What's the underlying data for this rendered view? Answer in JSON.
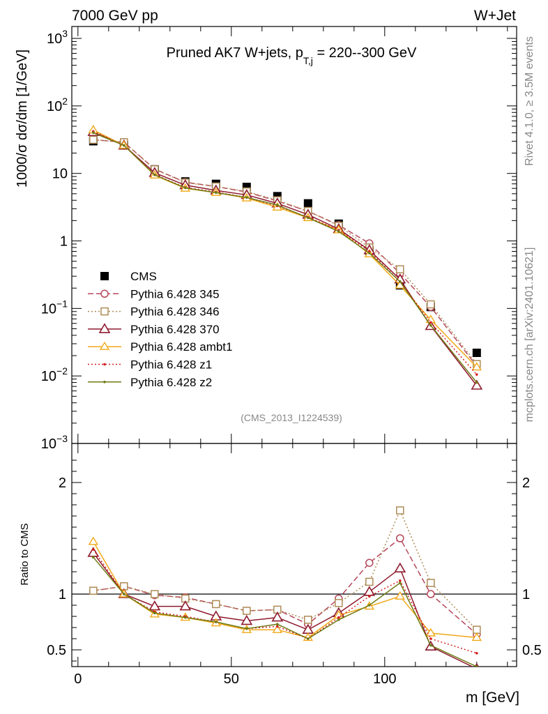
{
  "header": {
    "left": "7000 GeV pp",
    "right": "W+Jet"
  },
  "side": {
    "rivet": "Rivet 4.1.0, ≥ 3.5M events",
    "mcplots": "mcplots.cern.ch [arXiv:2401.10621]"
  },
  "chart_data": [
    {
      "type": "line",
      "panel": "main",
      "title": "Pruned AK7 W+jets, p_T,j = 220--300 GeV",
      "title_main": "Pruned AK7 W+jets, p",
      "title_sub": "T,j",
      "title_rest": " = 220--300 GeV",
      "ylabel": "1000/σ  dσ/dm [1/GeV]",
      "yscale": "log",
      "ylim": [
        0.001,
        1500
      ],
      "xlim": [
        -2,
        143
      ],
      "watermark": "(CMS_2013_I1224539)",
      "x": [
        5,
        15,
        25,
        35,
        45,
        55,
        65,
        75,
        85,
        95,
        105,
        115,
        130
      ],
      "series": [
        {
          "name": "CMS",
          "color": "#000000",
          "marker": "square",
          "dash": "",
          "values": [
            30,
            26,
            11.5,
            7.6,
            7.0,
            6.3,
            4.6,
            3.6,
            1.8,
            0.72,
            0.22,
            0.105,
            0.022
          ]
        },
        {
          "name": "Pythia 6.428 345",
          "color": "#b5475a",
          "marker": "circle",
          "dash": "8,4",
          "values": [
            31.5,
            29,
            11.6,
            7.4,
            6.4,
            5.3,
            3.9,
            2.75,
            1.72,
            0.92,
            0.33,
            0.105,
            0.014
          ]
        },
        {
          "name": "Pythia 6.428 346",
          "color": "#ad8b56",
          "marker": "osquare",
          "dash": "2,3",
          "values": [
            31.5,
            29,
            11.5,
            7.3,
            6.4,
            5.4,
            4.0,
            2.78,
            1.67,
            0.8,
            0.38,
            0.115,
            0.015
          ]
        },
        {
          "name": "Pythia 6.428 370",
          "color": "#8e1a2e",
          "marker": "triangle",
          "dash": "",
          "values": [
            41,
            26,
            10.2,
            6.7,
            5.6,
            4.8,
            3.6,
            2.45,
            1.5,
            0.73,
            0.27,
            0.055,
            0.0072
          ]
        },
        {
          "name": "Pythia 6.428 ambt1",
          "color": "#f0a818",
          "marker": "otriangle",
          "dash": "",
          "values": [
            44,
            26,
            9.4,
            6.0,
            5.2,
            4.3,
            3.15,
            2.2,
            1.45,
            0.64,
            0.22,
            0.068,
            0.0135
          ]
        },
        {
          "name": "Pythia 6.428 z1",
          "color": "#d42020",
          "marker": "dot",
          "dash": "2,3",
          "values": [
            42,
            26,
            9.6,
            6.2,
            5.3,
            4.4,
            3.3,
            2.25,
            1.45,
            0.7,
            0.25,
            0.062,
            0.0105
          ]
        },
        {
          "name": "Pythia 6.428 z2",
          "color": "#6f7a14",
          "marker": "dot",
          "dash": "",
          "values": [
            40,
            26,
            9.5,
            6.1,
            5.2,
            4.4,
            3.4,
            2.2,
            1.38,
            0.66,
            0.25,
            0.056,
            0.008
          ]
        }
      ],
      "yticks": [
        {
          "value": 0.001,
          "base": "10",
          "exp": "−3"
        },
        {
          "value": 0.01,
          "base": "10",
          "exp": "−2"
        },
        {
          "value": 0.1,
          "base": "10",
          "exp": "−1"
        },
        {
          "value": 1,
          "base": "1",
          "exp": ""
        },
        {
          "value": 10,
          "base": "10",
          "exp": ""
        },
        {
          "value": 100,
          "base": "10",
          "exp": "2"
        },
        {
          "value": 1000,
          "base": "10",
          "exp": "3"
        }
      ]
    },
    {
      "type": "line",
      "panel": "ratio",
      "ylabel": "Ratio to CMS",
      "xlabel": "m [GeV]",
      "ylim": [
        0.35,
        2.35
      ],
      "xlim": [
        -2,
        143
      ],
      "reference": 1,
      "x": [
        5,
        15,
        25,
        35,
        45,
        55,
        65,
        75,
        85,
        95,
        105,
        115,
        130
      ],
      "series": [
        {
          "name": "Pythia 6.428 345",
          "values": [
            1.03,
            1.07,
            0.99,
            0.97,
            0.91,
            0.85,
            0.86,
            0.73,
            0.96,
            1.28,
            1.5,
            1.0,
            0.64
          ]
        },
        {
          "name": "Pythia 6.428 346",
          "values": [
            1.03,
            1.07,
            1.0,
            0.96,
            0.91,
            0.85,
            0.86,
            0.77,
            0.92,
            1.11,
            1.75,
            1.1,
            0.68
          ]
        },
        {
          "name": "Pythia 6.428 370",
          "values": [
            1.37,
            1.0,
            0.89,
            0.89,
            0.8,
            0.76,
            0.79,
            0.68,
            0.83,
            1.02,
            1.23,
            0.53,
            0.33
          ]
        },
        {
          "name": "Pythia 6.428 ambt1",
          "values": [
            1.47,
            1.0,
            0.82,
            0.79,
            0.74,
            0.68,
            0.68,
            0.61,
            0.81,
            0.89,
            0.98,
            0.65,
            0.61
          ]
        },
        {
          "name": "Pythia 6.428 z1",
          "values": [
            1.4,
            1.0,
            0.84,
            0.8,
            0.75,
            0.69,
            0.71,
            0.6,
            0.79,
            0.98,
            1.12,
            0.6,
            0.47
          ]
        },
        {
          "name": "Pythia 6.428 z2",
          "values": [
            1.33,
            1.0,
            0.83,
            0.79,
            0.75,
            0.69,
            0.73,
            0.6,
            0.77,
            0.9,
            1.1,
            0.54,
            0.35
          ]
        }
      ],
      "yticks": [
        {
          "value": 0.5,
          "label": "0.5"
        },
        {
          "value": 1,
          "label": "1"
        },
        {
          "value": 2,
          "label": "2"
        }
      ],
      "xticks": [
        {
          "value": 0,
          "label": "0"
        },
        {
          "value": 50,
          "label": "50"
        },
        {
          "value": 100,
          "label": "100"
        }
      ]
    }
  ]
}
